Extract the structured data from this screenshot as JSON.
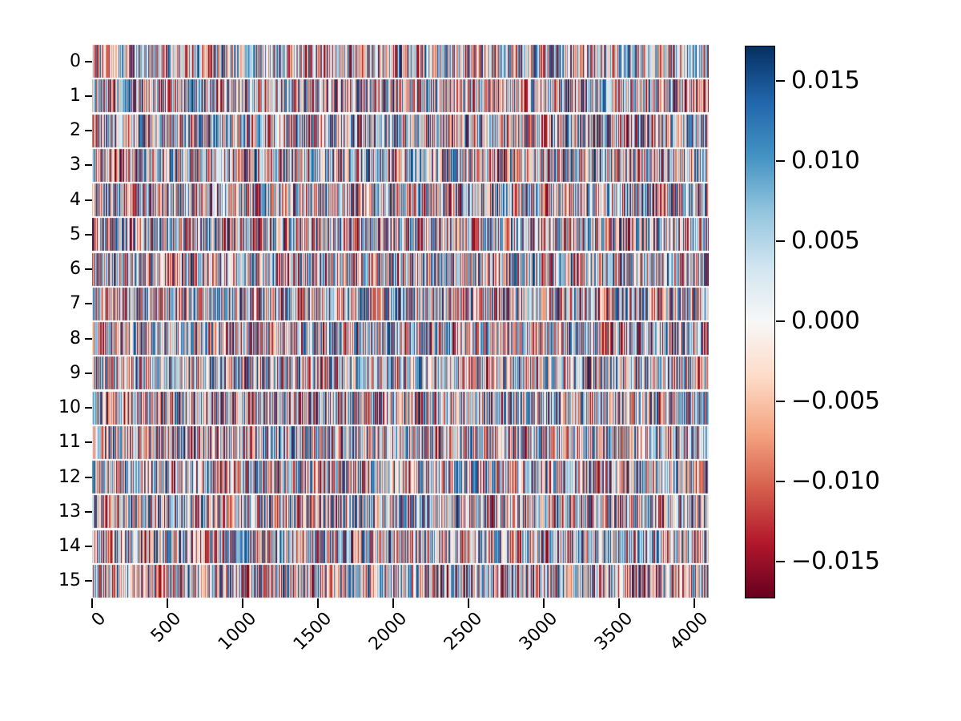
{
  "figure": {
    "background": "#ffffff",
    "text_color": "#000000"
  },
  "chart_data": {
    "type": "heatmap",
    "title": "",
    "xlabel": "",
    "ylabel": "",
    "rows": 16,
    "cols": 4096,
    "y_ticks": [
      "0",
      "1",
      "2",
      "3",
      "4",
      "5",
      "6",
      "7",
      "8",
      "9",
      "10",
      "11",
      "12",
      "13",
      "14",
      "15"
    ],
    "x_ticks": [
      "0",
      "500",
      "1000",
      "1500",
      "2000",
      "2500",
      "3000",
      "3500",
      "4000"
    ],
    "x_tick_values": [
      0,
      500,
      1000,
      1500,
      2000,
      2500,
      3000,
      3500,
      4000
    ],
    "colormap": "RdBu",
    "vmin": -0.0172,
    "vmax": 0.0172,
    "values_summary": "dense random noise matrix (16 x ~4096), values approximately uniform in [-0.017, 0.017], rendered as thin vertical red/white/blue stripes",
    "seed": 42,
    "grid": false,
    "colorbar": {
      "position": "right",
      "tick_labels": [
        "0.015",
        "0.010",
        "0.005",
        "0.000",
        "−0.005",
        "−0.010",
        "−0.015"
      ],
      "tick_values": [
        0.015,
        0.01,
        0.005,
        0.0,
        -0.005,
        -0.01,
        -0.015
      ]
    },
    "colormap_stops": [
      [
        0.0,
        "#67001f"
      ],
      [
        0.1,
        "#b2182b"
      ],
      [
        0.2,
        "#d6604d"
      ],
      [
        0.3,
        "#f4a582"
      ],
      [
        0.4,
        "#fddbc7"
      ],
      [
        0.5,
        "#f7f7f7"
      ],
      [
        0.6,
        "#d1e5f0"
      ],
      [
        0.7,
        "#92c5de"
      ],
      [
        0.8,
        "#4393c3"
      ],
      [
        0.9,
        "#2166ac"
      ],
      [
        1.0,
        "#053061"
      ]
    ]
  }
}
